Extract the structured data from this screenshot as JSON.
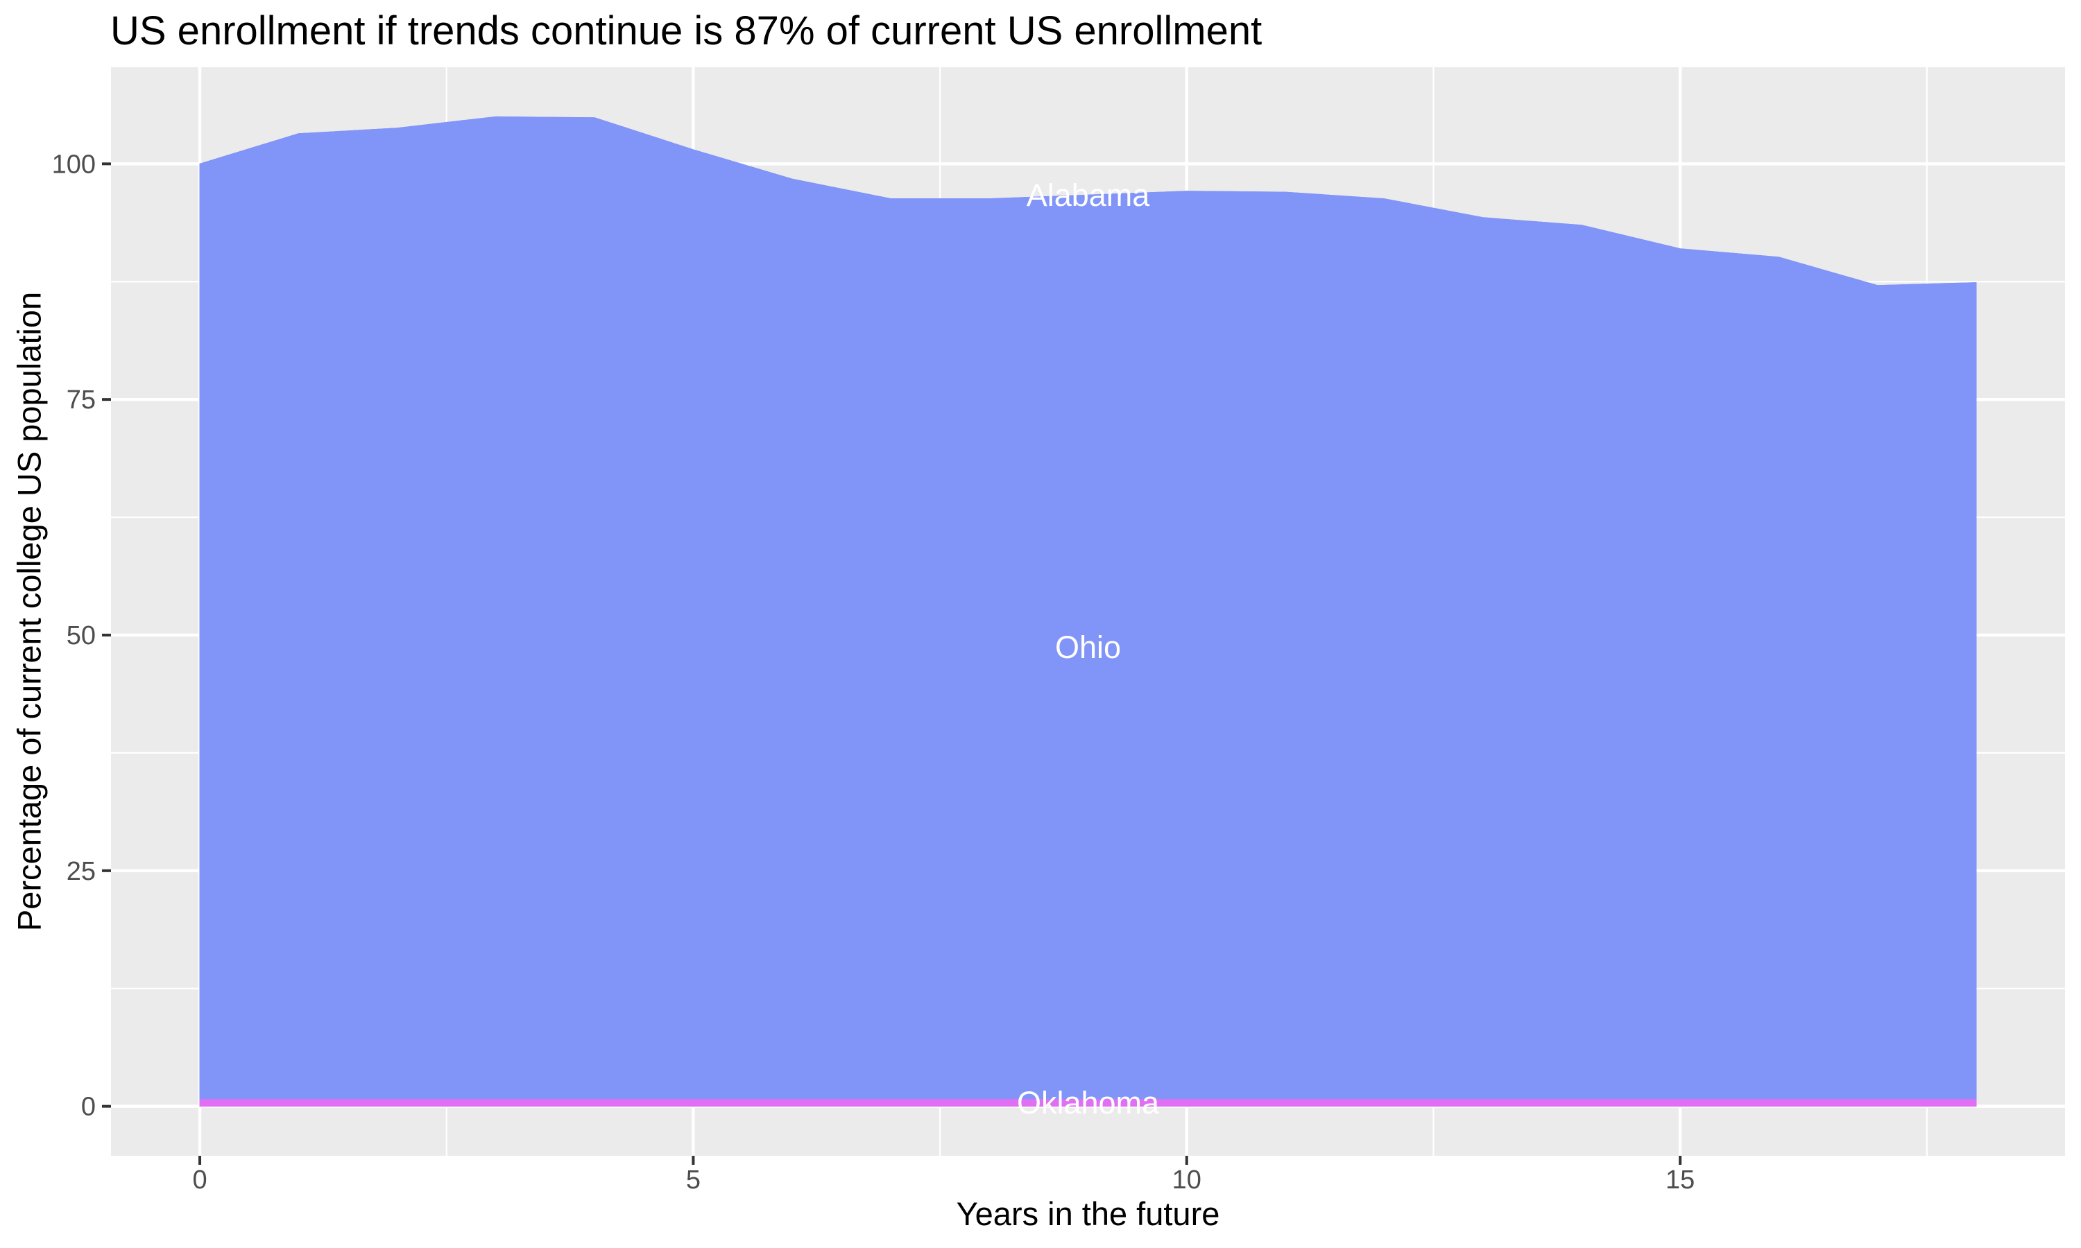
{
  "chart_data": {
    "type": "area",
    "stacked": true,
    "title": "US enrollment if trends continue is 87% of current US enrollment",
    "xlabel": "Years in the future",
    "ylabel": "Percentage of current college US population",
    "x": [
      0,
      1,
      2,
      3,
      4,
      5,
      6,
      7,
      8,
      9,
      10,
      11,
      12,
      13,
      14,
      15,
      16,
      17,
      18
    ],
    "series": [
      {
        "name": "Oklahoma",
        "color": "#E06FF3",
        "values": [
          0.8,
          0.8,
          0.8,
          0.8,
          0.8,
          0.8,
          0.8,
          0.8,
          0.8,
          0.8,
          0.8,
          0.8,
          0.8,
          0.8,
          0.8,
          0.8,
          0.8,
          0.8,
          0.8
        ]
      },
      {
        "name": "Ohio",
        "color": "#8194F8",
        "values": [
          99.2,
          102.4,
          103.0,
          104.2,
          104.1,
          100.7,
          97.6,
          95.5,
          95.5,
          95.9,
          96.3,
          96.2,
          95.5,
          93.5,
          92.7,
          90.2,
          89.3,
          86.3,
          86.6
        ]
      },
      {
        "name": "Alabama",
        "color": "#8194F8",
        "values": [
          0,
          0,
          0,
          0,
          0,
          0,
          0,
          0,
          0,
          0,
          0,
          0,
          0,
          0,
          0,
          0,
          0,
          0,
          0
        ]
      }
    ],
    "total_top_boundary": [
      100.0,
      103.2,
      103.8,
      105.0,
      104.9,
      101.5,
      98.4,
      96.3,
      96.3,
      96.7,
      97.1,
      97.0,
      96.3,
      94.3,
      93.5,
      91.0,
      90.1,
      87.1,
      87.4
    ],
    "series_labels": [
      {
        "text": "Alabama",
        "x": 9,
        "series": "Alabama"
      },
      {
        "text": "Ohio",
        "x": 9,
        "series": "Ohio"
      },
      {
        "text": "Oklahoma",
        "x": 9,
        "series": "Oklahoma"
      }
    ],
    "label_color": "#FFFFFF",
    "x_ticks": {
      "values": [
        0,
        5,
        10,
        15
      ],
      "labels": [
        "0",
        "5",
        "10",
        "15"
      ]
    },
    "y_ticks": {
      "values": [
        0,
        25,
        50,
        75,
        100
      ],
      "labels": [
        "0",
        "25",
        "50",
        "75",
        "100"
      ]
    },
    "x_minor": [
      2.5,
      7.5,
      12.5,
      17.5
    ],
    "y_minor": [
      12.5,
      37.5,
      62.5,
      87.5
    ],
    "xlim": [
      -0.9,
      18.9
    ],
    "ylim": [
      -5.25,
      110.25
    ],
    "grid": true,
    "legend": "none",
    "colors": {
      "panel_bg": "#EBEBEB",
      "grid_major": "#FFFFFF",
      "grid_minor": "#FFFFFF",
      "tick_mark": "#333333",
      "tick_label": "#4D4D4D",
      "axis_text": "#000000",
      "outer_bg": "#FFFFFF"
    }
  }
}
